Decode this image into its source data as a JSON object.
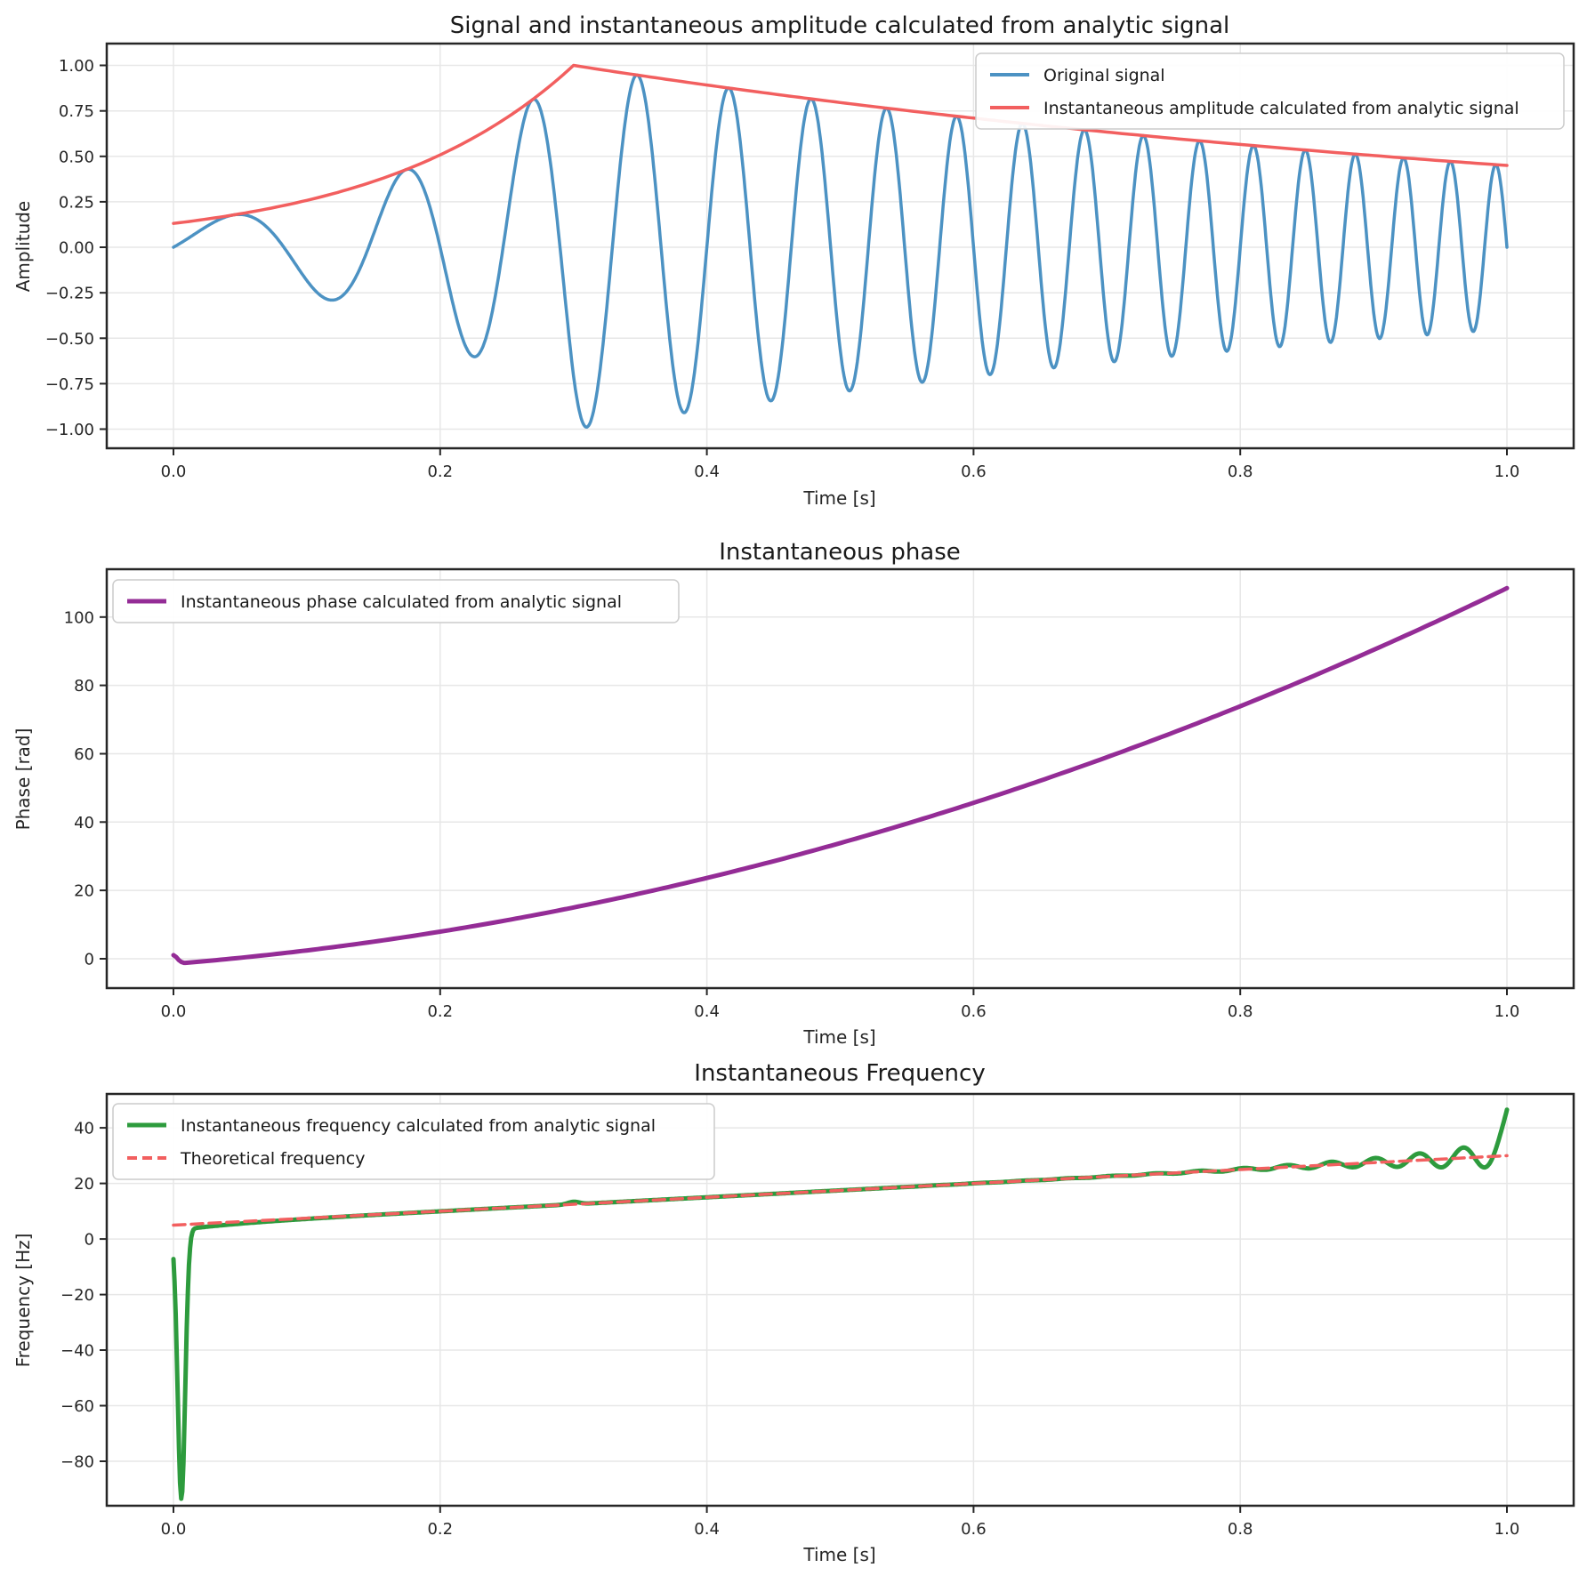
{
  "figure": {
    "background": "#ffffff",
    "grid_color": "#e7e7e7",
    "spine_color": "#262626",
    "text_color": "#262626"
  },
  "chart_data": [
    {
      "id": "signal-amplitude",
      "type": "line",
      "title": "Signal and instantaneous amplitude calculated from analytic signal",
      "xlabel": "Time [s]",
      "ylabel": "Amplitude",
      "xlim": [
        -0.05,
        1.05
      ],
      "ylim": [
        -1.105,
        1.12
      ],
      "grid": true,
      "xticks": [
        {
          "v": 0.0,
          "label": "0.0"
        },
        {
          "v": 0.2,
          "label": "0.2"
        },
        {
          "v": 0.4,
          "label": "0.4"
        },
        {
          "v": 0.6,
          "label": "0.6"
        },
        {
          "v": 0.8,
          "label": "0.8"
        },
        {
          "v": 1.0,
          "label": "1.0"
        }
      ],
      "yticks": [
        {
          "v": 1.0,
          "label": "1.00"
        },
        {
          "v": 0.75,
          "label": "0.75"
        },
        {
          "v": 0.5,
          "label": "0.50"
        },
        {
          "v": 0.25,
          "label": "0.25"
        },
        {
          "v": 0.0,
          "label": "0.00"
        },
        {
          "v": -0.25,
          "label": "−0.25"
        },
        {
          "v": -0.5,
          "label": "−0.50"
        },
        {
          "v": -0.75,
          "label": "−0.75"
        },
        {
          "v": -1.0,
          "label": "−1.00"
        }
      ],
      "legend": {
        "loc": "upper right"
      },
      "series": [
        {
          "name": "Original signal",
          "color": "#4c92c3",
          "width": 3.5,
          "style": "solid",
          "generator": {
            "kind": "am_chirp",
            "f0": 5,
            "f1": 30,
            "env_t_peak": 0.3,
            "env_start": 0.131,
            "env_end": 0.45,
            "samples": 1400
          }
        },
        {
          "name": "Instantaneous amplitude calculated from analytic signal",
          "color": "#f25f5f",
          "width": 3.5,
          "style": "solid",
          "generator": {
            "kind": "chirp_envelope",
            "env_t_peak": 0.3,
            "env_start": 0.131,
            "env_end": 0.45,
            "samples": 260
          }
        }
      ]
    },
    {
      "id": "instantaneous-phase",
      "type": "line",
      "title": "Instantaneous phase",
      "xlabel": "Time [s]",
      "ylabel": "Phase [rad]",
      "xlim": [
        -0.05,
        1.05
      ],
      "ylim": [
        -8.6,
        114
      ],
      "grid": true,
      "xticks": [
        {
          "v": 0.0,
          "label": "0.0"
        },
        {
          "v": 0.2,
          "label": "0.2"
        },
        {
          "v": 0.4,
          "label": "0.4"
        },
        {
          "v": 0.6,
          "label": "0.6"
        },
        {
          "v": 0.8,
          "label": "0.8"
        },
        {
          "v": 1.0,
          "label": "1.0"
        }
      ],
      "yticks": [
        {
          "v": 100,
          "label": "100"
        },
        {
          "v": 80,
          "label": "80"
        },
        {
          "v": 60,
          "label": "60"
        },
        {
          "v": 40,
          "label": "40"
        },
        {
          "v": 20,
          "label": "20"
        },
        {
          "v": 0,
          "label": "0"
        }
      ],
      "legend": {
        "loc": "upper left"
      },
      "series": [
        {
          "name": "Instantaneous phase calculated from analytic signal",
          "color": "#942c96",
          "width": 5,
          "style": "solid",
          "generator": {
            "kind": "chirp_phase",
            "f0": 5,
            "f1": 30,
            "offset": -1.5,
            "hook": [
              [
                0,
                1.05
              ],
              [
                0.002,
                0.5
              ],
              [
                0.004,
                -0.4
              ],
              [
                0.006,
                -0.95
              ],
              [
                0.008,
                -1.2
              ]
            ],
            "start_t": 0.009,
            "samples": 260,
            "end_value_rad": 108.4
          }
        }
      ]
    },
    {
      "id": "instantaneous-frequency",
      "type": "line",
      "title": "Instantaneous Frequency",
      "xlabel": "Time [s]",
      "ylabel": "Frequency [Hz]",
      "xlim": [
        -0.05,
        1.05
      ],
      "ylim": [
        -96,
        52.2
      ],
      "grid": true,
      "xticks": [
        {
          "v": 0.0,
          "label": "0.0"
        },
        {
          "v": 0.2,
          "label": "0.2"
        },
        {
          "v": 0.4,
          "label": "0.4"
        },
        {
          "v": 0.6,
          "label": "0.6"
        },
        {
          "v": 0.8,
          "label": "0.8"
        },
        {
          "v": 1.0,
          "label": "1.0"
        }
      ],
      "yticks": [
        {
          "v": 40,
          "label": "40"
        },
        {
          "v": 20,
          "label": "20"
        },
        {
          "v": 0,
          "label": "0"
        },
        {
          "v": -20,
          "label": "−20"
        },
        {
          "v": -40,
          "label": "−40"
        },
        {
          "v": -60,
          "label": "−60"
        },
        {
          "v": -80,
          "label": "−80"
        }
      ],
      "legend": {
        "loc": "upper left"
      },
      "series": [
        {
          "name": "Instantaneous frequency calculated from analytic signal",
          "color": "#2d9b3d",
          "width": 5,
          "style": "solid",
          "generator": {
            "kind": "inst_freq",
            "f0": 5,
            "f1": 30,
            "start_dip": {
              "t": 0.006,
              "depth": 97,
              "sigma": 0.004
            },
            "approach": {
              "amount": 2.0,
              "tau": 0.05
            },
            "bump": {
              "t": 0.3,
              "height": 0.9,
              "sigma": 0.006
            },
            "osc": {
              "t0": 0.55,
              "amp0": 0.02,
              "tau": 0.08,
              "period": 0.033,
              "peak_t": 0.967
            },
            "end_spike": {
              "height": 11,
              "tau": 0.006
            },
            "samples": 1200
          }
        },
        {
          "name": "Theoretical frequency",
          "color": "#f25f5f",
          "width": 3.5,
          "style": "dashed",
          "generator": {
            "kind": "linear",
            "x0": 0,
            "y0": 5,
            "x1": 1,
            "y1": 30
          }
        }
      ]
    }
  ]
}
